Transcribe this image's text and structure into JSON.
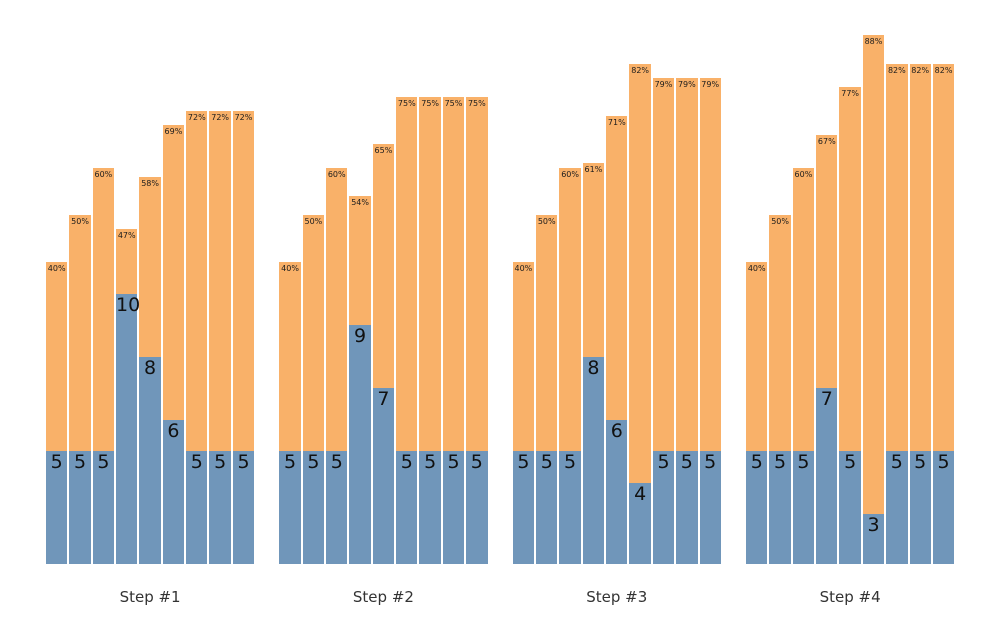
{
  "chart_data": {
    "type": "bar",
    "stacked": true,
    "orientation": "vertical",
    "title": "",
    "xlabel": "",
    "ylabel": "",
    "grid": false,
    "legend": "none",
    "background_color": "#ffffff",
    "colors": {
      "bottom_segment": "#7096ba",
      "top_segment": "#f9b169",
      "value_label": "#111111",
      "pct_label": "#1c1c1c",
      "step_label": "#333333"
    },
    "note_units": "value = height of blue bottom segment in data units; total = height of full bar (blue + orange) in data units, estimated from pixel positions; pct_label is printed at the top of the orange segment; value_label at the top of the blue segment",
    "steps": [
      {
        "label": "Step #1",
        "bars": [
          {
            "value": 5,
            "value_label": "5",
            "pct_label": "40%",
            "total": 11.0
          },
          {
            "value": 5,
            "value_label": "5",
            "pct_label": "50%",
            "total": 12.5
          },
          {
            "value": 5,
            "value_label": "5",
            "pct_label": "60%",
            "total": 14.0
          },
          {
            "value": 10,
            "value_label": "10",
            "pct_label": "47%",
            "total": 12.05
          },
          {
            "value": 8,
            "value_label": "8",
            "pct_label": "58%",
            "total": 13.7
          },
          {
            "value": 6,
            "value_label": "6",
            "pct_label": "69%",
            "total": 15.35
          },
          {
            "value": 5,
            "value_label": "5",
            "pct_label": "72%",
            "total": 15.8
          },
          {
            "value": 5,
            "value_label": "5",
            "pct_label": "72%",
            "total": 15.8
          },
          {
            "value": 5,
            "value_label": "5",
            "pct_label": "72%",
            "total": 15.8
          }
        ]
      },
      {
        "label": "Step #2",
        "bars": [
          {
            "value": 5,
            "value_label": "5",
            "pct_label": "40%",
            "total": 11.0
          },
          {
            "value": 5,
            "value_label": "5",
            "pct_label": "50%",
            "total": 12.5
          },
          {
            "value": 5,
            "value_label": "5",
            "pct_label": "60%",
            "total": 14.0
          },
          {
            "value": 9,
            "value_label": "9",
            "pct_label": "54%",
            "total": 13.1
          },
          {
            "value": 7,
            "value_label": "7",
            "pct_label": "65%",
            "total": 14.75
          },
          {
            "value": 5,
            "value_label": "5",
            "pct_label": "75%",
            "total": 16.25
          },
          {
            "value": 5,
            "value_label": "5",
            "pct_label": "75%",
            "total": 16.25
          },
          {
            "value": 5,
            "value_label": "5",
            "pct_label": "75%",
            "total": 16.25
          },
          {
            "value": 5,
            "value_label": "5",
            "pct_label": "75%",
            "total": 16.25
          }
        ]
      },
      {
        "label": "Step #3",
        "bars": [
          {
            "value": 5,
            "value_label": "5",
            "pct_label": "40%",
            "total": 11.0
          },
          {
            "value": 5,
            "value_label": "5",
            "pct_label": "50%",
            "total": 12.5
          },
          {
            "value": 5,
            "value_label": "5",
            "pct_label": "60%",
            "total": 14.0
          },
          {
            "value": 8,
            "value_label": "8",
            "pct_label": "61%",
            "total": 14.15
          },
          {
            "value": 6,
            "value_label": "6",
            "pct_label": "71%",
            "total": 15.65
          },
          {
            "value": 4,
            "value_label": "4",
            "pct_label": "82%",
            "total": 17.3
          },
          {
            "value": 5,
            "value_label": "5",
            "pct_label": "79%",
            "total": 16.85
          },
          {
            "value": 5,
            "value_label": "5",
            "pct_label": "79%",
            "total": 16.85
          },
          {
            "value": 5,
            "value_label": "5",
            "pct_label": "79%",
            "total": 16.85
          }
        ]
      },
      {
        "label": "Step #4",
        "bars": [
          {
            "value": 5,
            "value_label": "5",
            "pct_label": "40%",
            "total": 11.0
          },
          {
            "value": 5,
            "value_label": "5",
            "pct_label": "50%",
            "total": 12.5
          },
          {
            "value": 5,
            "value_label": "5",
            "pct_label": "60%",
            "total": 14.0
          },
          {
            "value": 7,
            "value_label": "7",
            "pct_label": "67%",
            "total": 15.05
          },
          {
            "value": 5,
            "value_label": "5",
            "pct_label": "77%",
            "total": 16.55
          },
          {
            "value": 3,
            "value_label": "3",
            "pct_label": "88%",
            "total": 18.2
          },
          {
            "value": 5,
            "value_label": "5",
            "pct_label": "82%",
            "total": 17.3
          },
          {
            "value": 5,
            "value_label": "5",
            "pct_label": "82%",
            "total": 17.3
          },
          {
            "value": 5,
            "value_label": "5",
            "pct_label": "82%",
            "total": 17.3
          }
        ]
      }
    ]
  }
}
